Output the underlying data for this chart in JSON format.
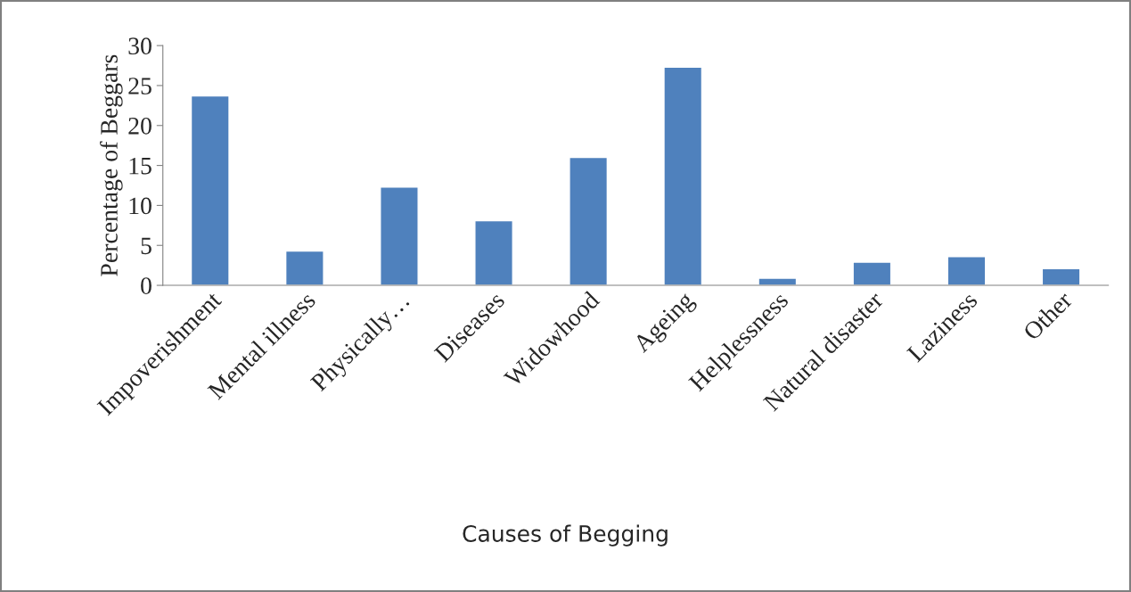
{
  "chart_data": {
    "type": "bar",
    "xlabel": "Causes of Begging",
    "ylabel": "Percentage of Beggars",
    "categories": [
      "Impoverishment",
      "Mental illness",
      "Physically…",
      "Diseases",
      "Widowhood",
      "Ageing",
      "Helplessness",
      "Natural disaster",
      "Laziness",
      "Other"
    ],
    "values": [
      23.7,
      4.3,
      12.3,
      8.1,
      16.0,
      27.3,
      0.9,
      2.9,
      3.6,
      2.1
    ],
    "color": "#4f81bd",
    "ylim": [
      0,
      30
    ],
    "yticks": [
      0,
      5,
      10,
      15,
      20,
      25,
      30
    ],
    "grid": false,
    "legend": false
  }
}
